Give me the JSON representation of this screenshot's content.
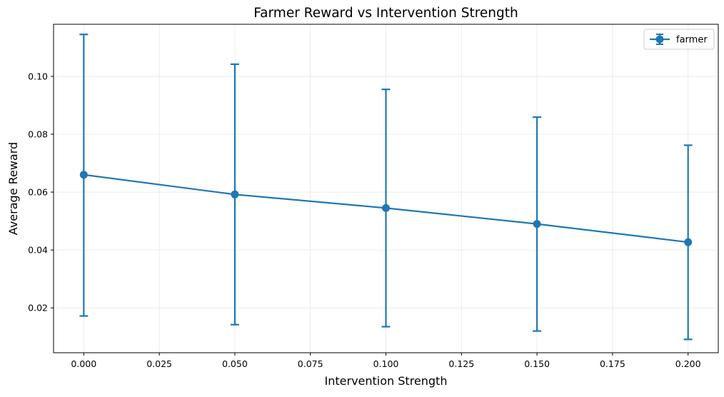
{
  "chart_data": {
    "type": "line",
    "title": "Farmer Reward vs Intervention Strength",
    "xlabel": "Intervention Strength",
    "ylabel": "Average Reward",
    "xlim": [
      -0.01,
      0.21
    ],
    "ylim": [
      0.0045,
      0.118
    ],
    "grid": true,
    "legend_position": "top-right",
    "x_ticks": [
      0.0,
      0.025,
      0.05,
      0.075,
      0.1,
      0.125,
      0.15,
      0.175,
      0.2
    ],
    "x_tick_labels": [
      "0.000",
      "0.025",
      "0.050",
      "0.075",
      "0.100",
      "0.125",
      "0.150",
      "0.175",
      "0.200"
    ],
    "y_ticks": [
      0.02,
      0.04,
      0.06,
      0.08,
      0.1
    ],
    "y_tick_labels": [
      "0.02",
      "0.04",
      "0.06",
      "0.08",
      "0.10"
    ],
    "series": [
      {
        "name": "farmer",
        "color": "#1f77b4",
        "x": [
          0.0,
          0.05,
          0.1,
          0.15,
          0.2
        ],
        "y": [
          0.066,
          0.0592,
          0.0545,
          0.049,
          0.0427
        ],
        "err_low": [
          0.0172,
          0.0142,
          0.0135,
          0.012,
          0.0091
        ],
        "err_high": [
          0.1145,
          0.1042,
          0.0955,
          0.0859,
          0.0762
        ]
      }
    ]
  }
}
